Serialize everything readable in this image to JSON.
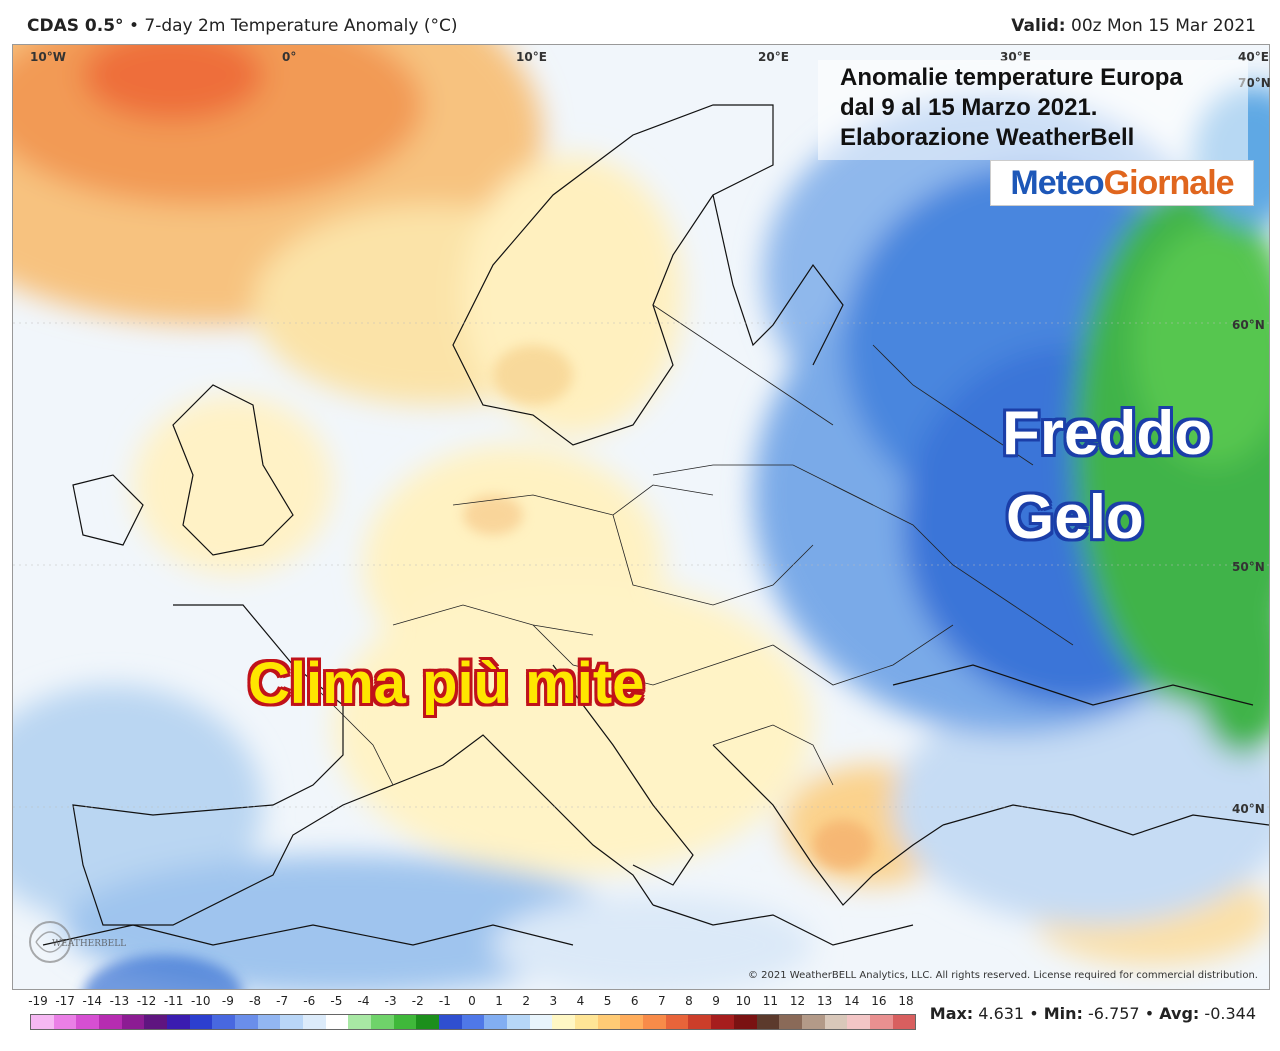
{
  "header": {
    "model": "CDAS 0.5°",
    "product": "7-day 2m Temperature Anomaly (°C)",
    "valid_label": "Valid:",
    "valid_value": "00z Mon 15 Mar 2021"
  },
  "longitude_labels": [
    "10°W",
    "0°",
    "10°E",
    "20°E",
    "30°E",
    "40°E"
  ],
  "latitude_labels": [
    "70°N",
    "60°N",
    "50°N",
    "40°N"
  ],
  "title_box": {
    "line1": "Anomalie temperature Europa",
    "line2": "dal 9 al 15 Marzo 2021.",
    "line3": "Elaborazione WeatherBell"
  },
  "logo": {
    "part1": "Meteo",
    "part2": "Giornale"
  },
  "annotations": {
    "cold_1": "Freddo",
    "cold_2": "Gelo",
    "mild": "Clima più mite"
  },
  "watermark": "WEATHERBELL",
  "copyright": "© 2021 WeatherBELL Analytics, LLC. All rights reserved. License required for commercial distribution.",
  "scale": {
    "labels": [
      "-19",
      "-17",
      "-14",
      "-13",
      "-12",
      "-11",
      "-10",
      "-9",
      "-8",
      "-7",
      "-6",
      "-5",
      "-4",
      "-3",
      "-2",
      "-1",
      "0",
      "1",
      "2",
      "3",
      "4",
      "5",
      "6",
      "7",
      "8",
      "9",
      "10",
      "11",
      "12",
      "13",
      "14",
      "16",
      "18"
    ],
    "colors": [
      "#f6b8f3",
      "#ea7fe6",
      "#d64fd2",
      "#b62cb1",
      "#8c1c93",
      "#5f1580",
      "#3a1cb0",
      "#2c3fcf",
      "#4868e0",
      "#6a8eea",
      "#92b6f2",
      "#b9d6f7",
      "#dcebfa",
      "#ffffff",
      "#a8e8a4",
      "#6fd36a",
      "#3fb83a",
      "#1c8f1c",
      "#2f4fd0",
      "#4f78e8",
      "#82aef2",
      "#b7d7f7",
      "#e8f4fc",
      "#fff7c4",
      "#ffe596",
      "#ffcb75",
      "#ffad5c",
      "#f88b49",
      "#e8643a",
      "#cc3e2a",
      "#a61d1d",
      "#7a1212",
      "#5c3a2c",
      "#8a6a58",
      "#b39a88",
      "#d9c8ba",
      "#f3c6c6",
      "#e99090",
      "#d85f5f"
    ]
  },
  "stats": {
    "max_label": "Max:",
    "max_value": "4.631",
    "min_label": "Min:",
    "min_value": "-6.757",
    "avg_label": "Avg:",
    "avg_value": "-0.344"
  }
}
